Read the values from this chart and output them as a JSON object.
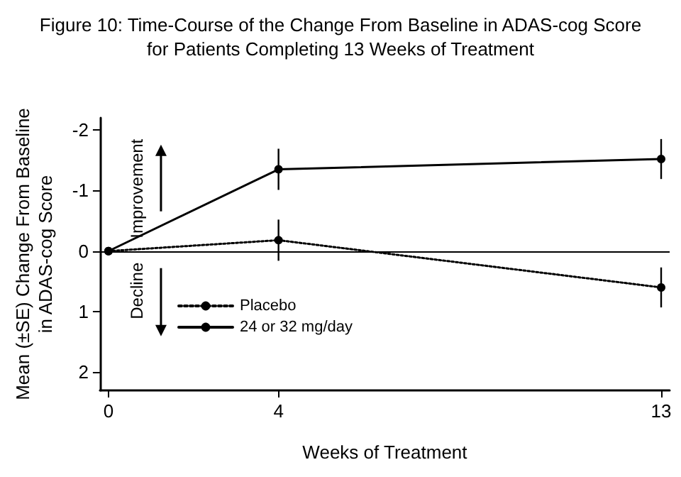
{
  "chart_data": {
    "type": "line",
    "title": "Figure 10: Time-Course of the Change From Baseline in ADAS-cog Score\nfor Patients Completing 13 Weeks of Treatment",
    "xlabel": "Weeks of Treatment",
    "ylabel": "Mean (±SE) Change From Baseline\nin ADAS-cog Score",
    "x": [
      0,
      4,
      13
    ],
    "series": [
      {
        "name": "Placebo",
        "color": "#000000",
        "values": [
          0,
          -0.18,
          0.6
        ],
        "errors": [
          null,
          0.34,
          0.33
        ],
        "line_style": "dotted"
      },
      {
        "name": "24 or 32 mg/day",
        "color": "#000000",
        "values": [
          0,
          -1.35,
          -1.52
        ],
        "errors": [
          null,
          0.34,
          0.33
        ],
        "line_style": "solid"
      }
    ],
    "xlim": [
      -0.2,
      13.2
    ],
    "xticks": [
      0,
      4,
      13
    ],
    "ylim": [
      2.3,
      -2.2
    ],
    "yticks": [
      -2,
      -1,
      0,
      1,
      2
    ],
    "ref_lines": [
      {
        "axis": "y",
        "value": 0,
        "label": null,
        "color": "#000000",
        "line_style": "solid"
      }
    ],
    "annotations": [
      "Improvement",
      "Decline"
    ],
    "legend": "bottom left",
    "marker": "circle",
    "grid": false
  }
}
